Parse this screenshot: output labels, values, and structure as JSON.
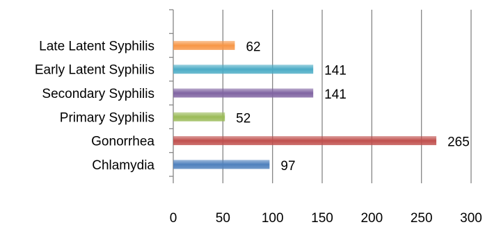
{
  "chart_data": {
    "type": "bar",
    "orientation": "horizontal",
    "categories": [
      "Chlamydia",
      "Gonorrhea",
      "Primary Syphilis",
      "Secondary Syphilis",
      "Early Latent Syphilis",
      "Late Latent Syphilis"
    ],
    "values": [
      97,
      265,
      52,
      141,
      141,
      62
    ],
    "colors": [
      "#4F81BD",
      "#C0504D",
      "#9BBB59",
      "#8064A2",
      "#4BACC6",
      "#F79646"
    ],
    "xlim": [
      0,
      300
    ],
    "xticks": [
      0,
      50,
      100,
      150,
      200,
      250,
      300
    ],
    "grid": true,
    "legend": false
  }
}
